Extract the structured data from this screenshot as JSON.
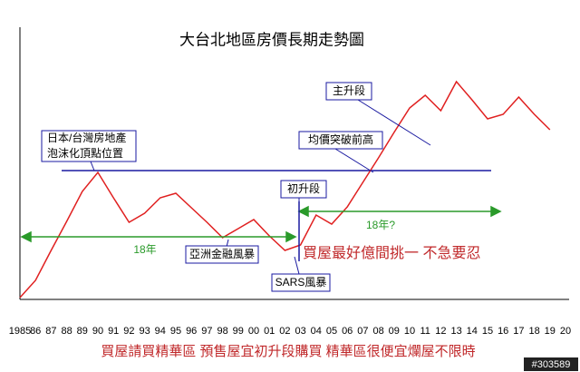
{
  "chart_data": {
    "type": "line",
    "title": "大台北地區房價長期走勢圖",
    "categories": [
      "1985",
      "86",
      "87",
      "88",
      "89",
      "90",
      "91",
      "92",
      "93",
      "94",
      "95",
      "96",
      "97",
      "98",
      "99",
      "00",
      "01",
      "02",
      "03",
      "04",
      "05",
      "06",
      "07",
      "08",
      "09",
      "10",
      "11",
      "12",
      "13",
      "14",
      "15",
      "16",
      "17",
      "18",
      "19",
      "20"
    ],
    "values": [
      2,
      21,
      54,
      86,
      119,
      140,
      112,
      85,
      95,
      112,
      117,
      101,
      85,
      68,
      78,
      88,
      70,
      54,
      60,
      93,
      83,
      102,
      129,
      156,
      184,
      211,
      225,
      208,
      240,
      220,
      199,
      204,
      223,
      204,
      187,
      null
    ],
    "color": "#e02020",
    "ylim": [
      0,
      300
    ],
    "reference_line": {
      "value": 142,
      "color": "#1a1aa0"
    },
    "annotations": {
      "peak": [
        "日本/台灣房地產",
        "泡沫化頂點位置"
      ],
      "asia": "亞洲金融風暴",
      "sars": "SARS風暴",
      "initial": "初升段",
      "breakout": "均價突破前高",
      "main": "主升段",
      "span1": "18年",
      "span2": "18年?",
      "advice": "買屋最好億間挑一  不急要忍",
      "footer": "買屋請買精華區  預售屋宜初升段購買  精華區很便宜爛屋不限時",
      "watermark": "#303589"
    }
  }
}
